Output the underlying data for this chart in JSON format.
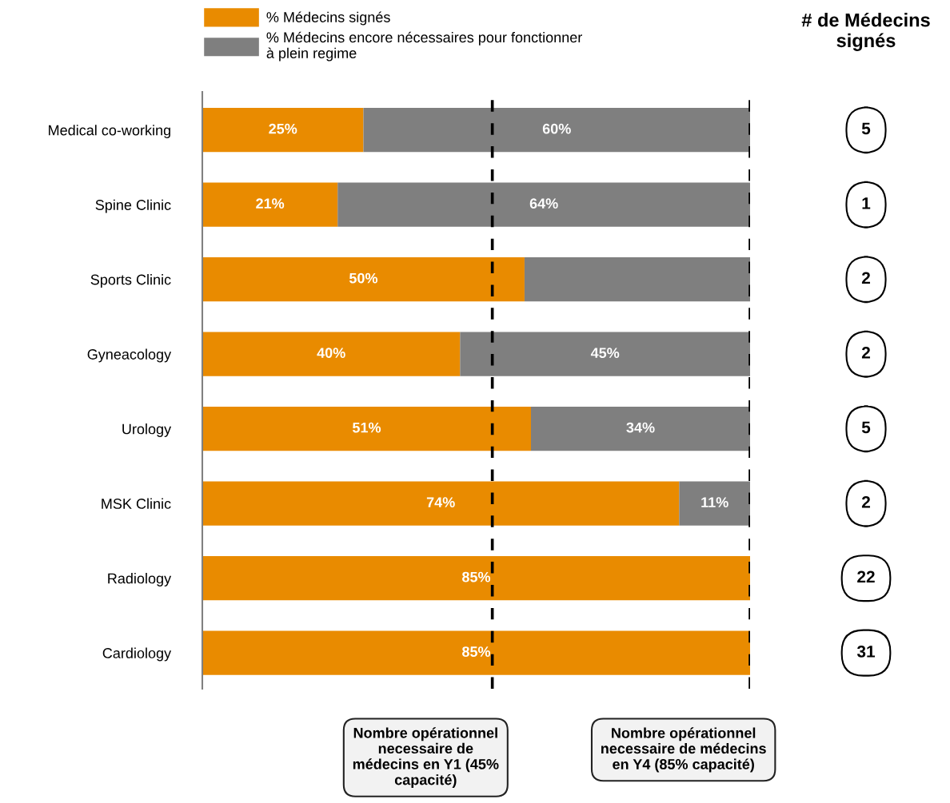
{
  "chart_data": {
    "type": "bar",
    "orientation": "horizontal",
    "stacked": true,
    "categories": [
      "Medical co-working",
      "Spine Clinic",
      "Sports Clinic",
      "Gyneacology",
      "Urology",
      "MSK Clinic",
      "Radiology",
      "Cardiology"
    ],
    "series": [
      {
        "name": "% Médecins signés",
        "color": "#e98b00",
        "values": [
          25,
          21,
          50,
          40,
          51,
          74,
          85,
          85
        ],
        "value_labels": [
          "25%",
          "21%",
          "50%",
          "40%",
          "51%",
          "74%",
          "85%",
          "85%"
        ]
      },
      {
        "name": "% Médecins encore nécessaires pour fonctionner\nà plein regime",
        "color": "#7f7f7f",
        "values": [
          60,
          64,
          35,
          45,
          34,
          11,
          0,
          0
        ],
        "value_labels": [
          "60%",
          "64%",
          null,
          "45%",
          "34%",
          "11%",
          null,
          null
        ]
      }
    ],
    "xlim": [
      0,
      85
    ],
    "tick_labels": "y",
    "grid": false,
    "legend": "top",
    "ref_lines": [
      {
        "axis": "x",
        "value": 45,
        "label": "Nombre opérationnel\nnecessaire de\nmédecins en Y1 (45%\ncapacité)",
        "color": "#000000",
        "line_style": "dashed"
      },
      {
        "axis": "x",
        "value": 85,
        "label": "Nombre opérationnel\nnecessaire de médecins\nen Y4 (85% capacité)",
        "color": "#000000",
        "line_style": "dashed"
      }
    ],
    "annotations": [
      "# de Médecins\nsignés",
      "5",
      "1",
      "2",
      "2",
      "5",
      "2",
      "22",
      "31"
    ]
  }
}
